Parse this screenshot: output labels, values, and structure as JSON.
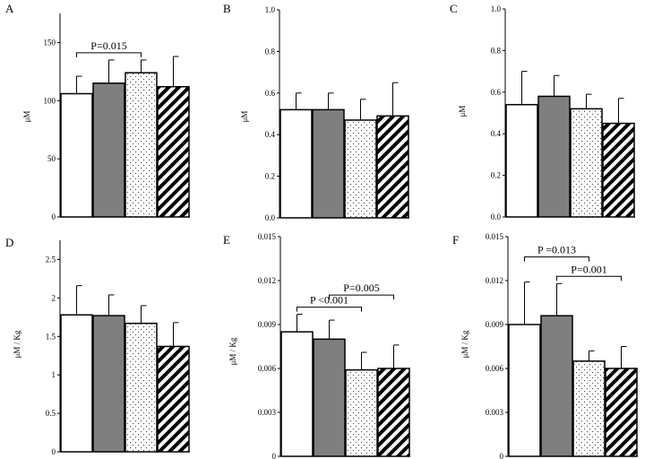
{
  "colors": {
    "bar_outline": "#000000",
    "gray_fill": "#7f7f7f",
    "white_fill": "#ffffff"
  },
  "group_patterns": [
    "white",
    "gray",
    "dots",
    "stripes"
  ],
  "chart_data": [
    {
      "type": "bar",
      "panel": "A",
      "ylabel": "μM",
      "ylim": [
        0,
        175
      ],
      "ticks": [
        0,
        50,
        100,
        150
      ],
      "tick_labels": [
        "0",
        "50",
        "100",
        "150"
      ],
      "values": [
        106,
        115,
        124,
        112
      ],
      "errors": [
        15,
        20,
        11,
        26
      ],
      "brackets": [
        {
          "from": 0,
          "to": 2,
          "label": "P=0.015",
          "level": 0
        }
      ]
    },
    {
      "type": "bar",
      "panel": "B",
      "ylabel": "μM",
      "ylim": [
        0,
        1.0
      ],
      "ticks": [
        0,
        0.2,
        0.4,
        0.6,
        0.8,
        1.0
      ],
      "tick_labels": [
        "0.0",
        "0.2",
        "0.4",
        "0.6",
        "0.8",
        "1.0"
      ],
      "values": [
        0.52,
        0.52,
        0.47,
        0.49
      ],
      "errors": [
        0.08,
        0.08,
        0.1,
        0.16
      ],
      "brackets": []
    },
    {
      "type": "bar",
      "panel": "C",
      "ylabel": "μM",
      "ylim": [
        0,
        1.0
      ],
      "ticks": [
        0,
        0.2,
        0.4,
        0.6,
        0.8,
        1.0
      ],
      "tick_labels": [
        "0.0",
        "0.2",
        "0.4",
        "0.6",
        "0.8",
        "1.0"
      ],
      "values": [
        0.54,
        0.58,
        0.52,
        0.45
      ],
      "errors": [
        0.16,
        0.1,
        0.07,
        0.12
      ],
      "brackets": []
    },
    {
      "type": "bar",
      "panel": "D",
      "ylabel": "μM / Kg",
      "ylim": [
        0,
        2.75
      ],
      "ticks": [
        0,
        0.5,
        1,
        1.5,
        2,
        2.5
      ],
      "tick_labels": [
        "0",
        "0.5",
        "1",
        "1.5",
        "2",
        "2.5"
      ],
      "values": [
        1.78,
        1.77,
        1.67,
        1.37
      ],
      "errors": [
        0.38,
        0.27,
        0.23,
        0.31
      ],
      "brackets": []
    },
    {
      "type": "bar",
      "panel": "E",
      "ylabel": "μM / Kg",
      "ylim": [
        0,
        0.015
      ],
      "ticks": [
        0,
        0.003,
        0.006,
        0.009,
        0.012,
        0.015
      ],
      "tick_labels": [
        "0",
        "0.003",
        "0.006",
        "0.009",
        "0.012",
        "0.015"
      ],
      "values": [
        0.0085,
        0.008,
        0.0059,
        0.006
      ],
      "errors": [
        0.0012,
        0.0013,
        0.0012,
        0.0016
      ],
      "brackets": [
        {
          "from": 1,
          "to": 3,
          "label": "P=0.005",
          "level": 1
        },
        {
          "from": 0,
          "to": 2,
          "label": "P <0.001",
          "level": 0
        }
      ]
    },
    {
      "type": "bar",
      "panel": "F",
      "ylabel": "μM / Kg",
      "ylim": [
        0,
        0.015
      ],
      "ticks": [
        0,
        0.003,
        0.006,
        0.009,
        0.012,
        0.015
      ],
      "tick_labels": [
        "0",
        "0.003",
        "0.006",
        "0.009",
        "0.012",
        "0.015"
      ],
      "values": [
        0.009,
        0.0096,
        0.0065,
        0.006
      ],
      "errors": [
        0.0029,
        0.0022,
        0.0007,
        0.0015
      ],
      "brackets": [
        {
          "from": 0,
          "to": 2,
          "label": "P =0.013",
          "level": 1
        },
        {
          "from": 1,
          "to": 3,
          "label": "P=0.001",
          "level": 0
        }
      ]
    }
  ]
}
